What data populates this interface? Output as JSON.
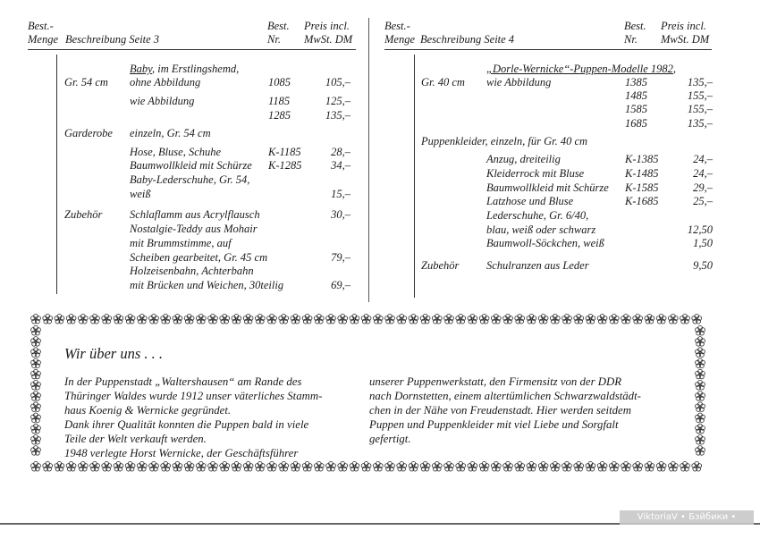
{
  "left": {
    "header": {
      "menge_1": "Best.-",
      "menge_2": "Menge",
      "beschreibung": "Beschreibung Seite 3",
      "nr_1": "Best.",
      "nr_2": "Nr.",
      "preis_1": "Preis incl.",
      "preis_2": "MwSt. DM"
    },
    "rows": [
      {
        "group": "",
        "desc_u": "Baby",
        "desc": ", im Erstlingshemd,",
        "nr": "",
        "price": ""
      },
      {
        "group": "Gr. 54 cm",
        "desc_u": "",
        "desc": "ohne Abbildung",
        "nr": "1085",
        "price": "105,–"
      },
      {
        "group": "",
        "desc_u": "",
        "desc": "wie Abbildung",
        "nr": "1185",
        "price": "125,–"
      },
      {
        "group": "",
        "desc_u": "",
        "desc": "",
        "nr": "1285",
        "price": "135,–"
      },
      {
        "group": "Garderobe",
        "desc_u": "",
        "desc": "einzeln, Gr. 54 cm",
        "nr": "",
        "price": ""
      },
      {
        "group": "",
        "desc_u": "",
        "desc": "Hose, Bluse, Schuhe",
        "nr": "K-1185",
        "price": "28,–"
      },
      {
        "group": "",
        "desc_u": "",
        "desc": "Baumwollkleid mit Schürze",
        "nr": "K-1285",
        "price": "34,–"
      },
      {
        "group": "",
        "desc_u": "",
        "desc": "Baby-Lederschuhe, Gr. 54,",
        "nr": "",
        "price": ""
      },
      {
        "group": "",
        "desc_u": "",
        "desc": "weiß",
        "nr": "",
        "price": "15,–"
      },
      {
        "group": "Zubehör",
        "desc_u": "",
        "desc": "Schlaflamm aus Acrylflausch",
        "nr": "",
        "price": "30,–"
      },
      {
        "group": "",
        "desc_u": "",
        "desc": "Nostalgie-Teddy aus Mohair",
        "nr": "",
        "price": ""
      },
      {
        "group": "",
        "desc_u": "",
        "desc": "mit Brummstimme, auf",
        "nr": "",
        "price": ""
      },
      {
        "group": "",
        "desc_u": "",
        "desc": "Scheiben gearbeitet, Gr. 45 cm",
        "nr": "",
        "price": "79,–"
      },
      {
        "group": "",
        "desc_u": "",
        "desc": "Holzeisenbahn, Achterbahn",
        "nr": "",
        "price": ""
      },
      {
        "group": "",
        "desc_u": "",
        "desc": "mit Brücken und Weichen, 30teilig",
        "nr": "",
        "price": "69,–"
      }
    ]
  },
  "right": {
    "header": {
      "menge_1": "Best.-",
      "menge_2": "Menge",
      "beschreibung": "Beschreibung Seite 4",
      "nr_1": "Best.",
      "nr_2": "Nr.",
      "preis_1": "Preis incl.",
      "preis_2": "MwSt. DM"
    },
    "rows": [
      {
        "group": "",
        "desc_u": "„Dorle-Wernicke“-Puppen-Modelle 1982",
        "desc": ",",
        "nr": "",
        "price": ""
      },
      {
        "group": "Gr. 40 cm",
        "desc_u": "",
        "desc": "wie Abbildung",
        "nr": "1385",
        "price": "135,–"
      },
      {
        "group": "",
        "desc_u": "",
        "desc": "",
        "nr": "1485",
        "price": "155,–"
      },
      {
        "group": "",
        "desc_u": "",
        "desc": "",
        "nr": "1585",
        "price": "155,–"
      },
      {
        "group": "",
        "desc_u": "",
        "desc": "",
        "nr": "1685",
        "price": "135,–"
      },
      {
        "group": "Puppenkleider, einzeln, für Gr. 40 cm",
        "desc_u": "",
        "desc": "",
        "nr": "",
        "price": ""
      },
      {
        "group": "",
        "desc_u": "",
        "desc": "Anzug, dreiteilig",
        "nr": "K-1385",
        "price": "24,–"
      },
      {
        "group": "",
        "desc_u": "",
        "desc": "Kleiderrock mit Bluse",
        "nr": "K-1485",
        "price": "24,–"
      },
      {
        "group": "",
        "desc_u": "",
        "desc": "Baumwollkleid mit Schürze",
        "nr": "K-1585",
        "price": "29,–"
      },
      {
        "group": "",
        "desc_u": "",
        "desc": "Latzhose und Bluse",
        "nr": "K-1685",
        "price": "25,–"
      },
      {
        "group": "",
        "desc_u": "",
        "desc": "Lederschuhe, Gr. 6/40,",
        "nr": "",
        "price": ""
      },
      {
        "group": "",
        "desc_u": "",
        "desc": "blau, weiß oder schwarz",
        "nr": "",
        "price": "12,50"
      },
      {
        "group": "",
        "desc_u": "",
        "desc": "Baumwoll-Söckchen, weiß",
        "nr": "",
        "price": "1,50"
      },
      {
        "group": "Zubehör",
        "desc_u": "",
        "desc": "Schulranzen aus Leder",
        "nr": "",
        "price": "9,50"
      }
    ]
  },
  "about": {
    "title": "Wir über uns . . .",
    "col1": [
      "In der Puppenstadt „Waltershausen“ am Rande des",
      "Thüringer Waldes wurde 1912 unser väterliches Stamm-",
      "haus Koenig & Wernicke gegründet.",
      "Dank ihrer Qualität konnten die Puppen bald in viele",
      "Teile der Welt verkauft werden.",
      "1948 verlegte Horst Wernicke, der Geschäftsführer"
    ],
    "col2": [
      "unserer Puppenwerkstatt, den Firmensitz von der DDR",
      "nach Dornstetten, einem altertümlichen Schwarzwaldstädt-",
      "chen in der Nähe von Freudenstadt. Hier werden seitdem",
      "Puppen und Puppenkleider mit viel Liebe und Sorgfalt",
      "gefertigt."
    ],
    "border_ornament": "flower-icon"
  },
  "watermark": "ViktoriaV • Бэйбики • babiki.ru"
}
